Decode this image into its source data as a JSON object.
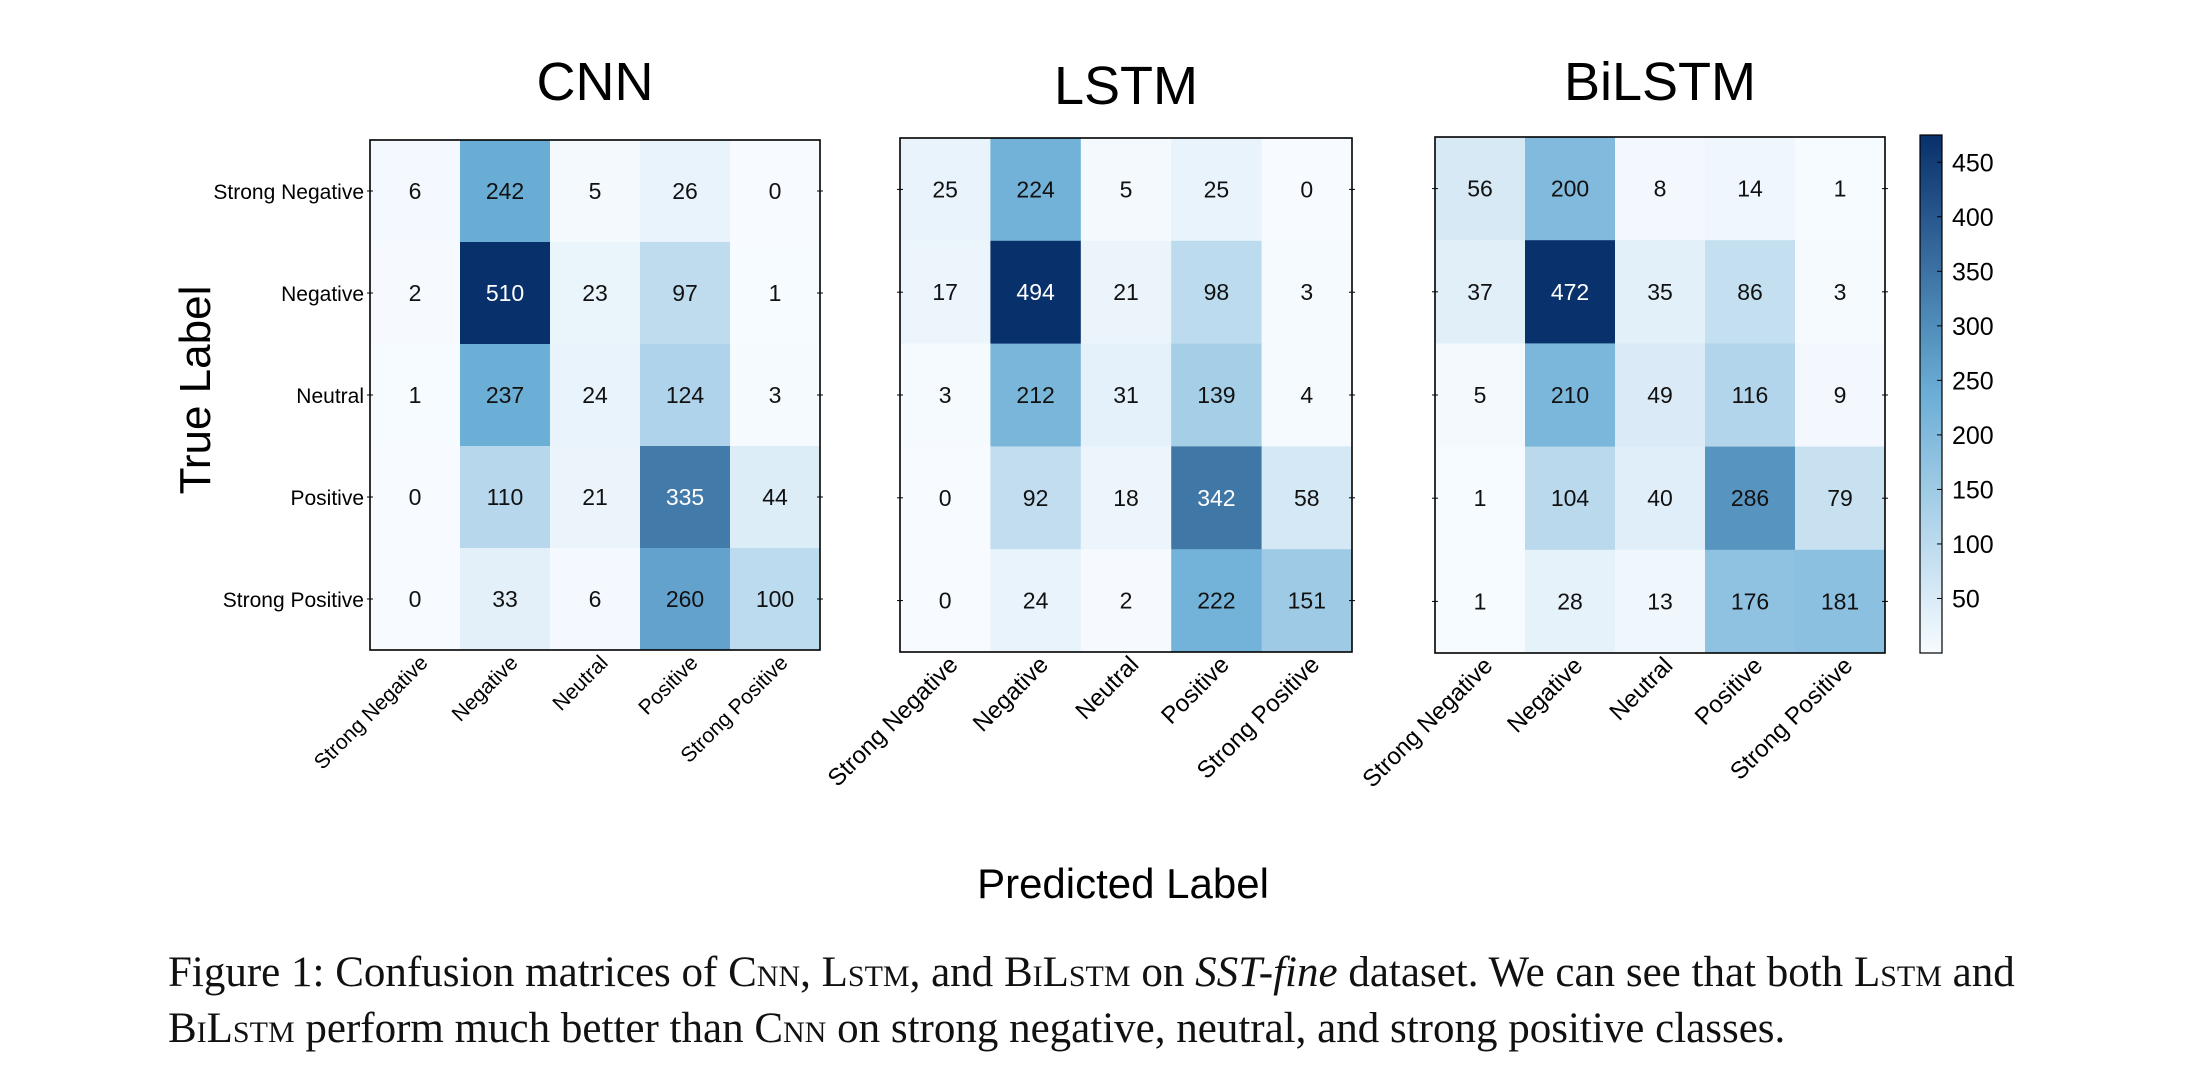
{
  "chart_data": [
    {
      "type": "heatmap",
      "title": "CNN",
      "ylabel": "True Label",
      "xlabel": "Predicted Label",
      "row_labels": [
        "Strong Negative",
        "Negative",
        "Neutral",
        "Positive",
        "Strong Positive"
      ],
      "col_labels": [
        "Strong Negative",
        "Negative",
        "Neutral",
        "Positive",
        "Strong Positive"
      ],
      "values": [
        [
          6,
          242,
          5,
          26,
          0
        ],
        [
          2,
          510,
          23,
          97,
          1
        ],
        [
          1,
          237,
          24,
          124,
          3
        ],
        [
          0,
          110,
          21,
          335,
          44
        ],
        [
          0,
          33,
          6,
          260,
          100
        ]
      ]
    },
    {
      "type": "heatmap",
      "title": "LSTM",
      "row_labels": [
        "Strong Negative",
        "Negative",
        "Neutral",
        "Positive",
        "Strong Positive"
      ],
      "col_labels": [
        "Strong Negative",
        "Negative",
        "Neutral",
        "Positive",
        "Strong Positive"
      ],
      "values": [
        [
          25,
          224,
          5,
          25,
          0
        ],
        [
          17,
          494,
          21,
          98,
          3
        ],
        [
          3,
          212,
          31,
          139,
          4
        ],
        [
          0,
          92,
          18,
          342,
          58
        ],
        [
          0,
          24,
          2,
          222,
          151
        ]
      ]
    },
    {
      "type": "heatmap",
      "title": "BiLSTM",
      "row_labels": [
        "Strong Negative",
        "Negative",
        "Neutral",
        "Positive",
        "Strong Positive"
      ],
      "col_labels": [
        "Strong Negative",
        "Negative",
        "Neutral",
        "Positive",
        "Strong Positive"
      ],
      "values": [
        [
          56,
          200,
          8,
          14,
          1
        ],
        [
          37,
          472,
          35,
          86,
          3
        ],
        [
          5,
          210,
          49,
          116,
          9
        ],
        [
          1,
          104,
          40,
          286,
          79
        ],
        [
          1,
          28,
          13,
          176,
          181
        ]
      ]
    }
  ],
  "colorbar": {
    "ticks": [
      450,
      400,
      350,
      300,
      250,
      200,
      150,
      100,
      50
    ],
    "range": [
      0,
      475
    ],
    "color_low": "#f7fbff",
    "color_mid": "#6baed6",
    "color_high": "#08306b"
  },
  "caption": {
    "prefix": "Figure 1: Confusion matrices of ",
    "m1": "Cnn",
    "s1": ", ",
    "m2": "Lstm",
    "s2": ", and ",
    "m3": "BiLstm",
    "s3": " on ",
    "dataset": "SST-fine",
    "s4": " dataset. We can see that both ",
    "m4": "Lstm",
    "s5": " and ",
    "m5": "BiLstm",
    "s6": " perform much better than ",
    "m6": "Cnn",
    "s7": " on strong negative, neutral, and strong positive classes."
  }
}
